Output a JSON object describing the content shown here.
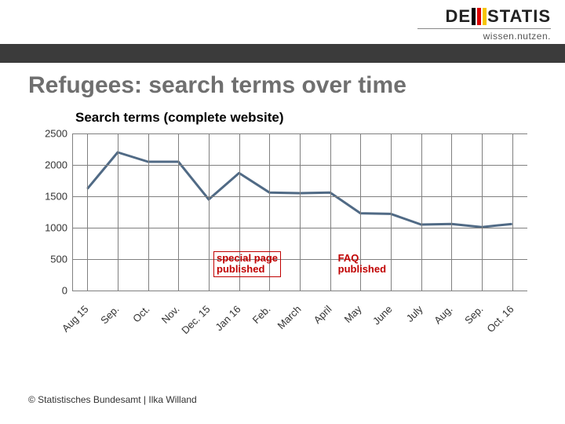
{
  "branding": {
    "logo_left": "DE",
    "logo_right": "STATIS",
    "tagline": "wissen.nutzen."
  },
  "title": "Refugees: search terms over time",
  "subtitle": "Search terms (complete website)",
  "footer": "© Statistisches Bundesamt | Ilka Willand",
  "chart": {
    "type": "line",
    "y": {
      "min": 0,
      "max": 2500,
      "step": 500,
      "ticks": [
        0,
        500,
        1000,
        1500,
        2000,
        2500
      ]
    },
    "x_labels": [
      "Aug 15",
      "Sep.",
      "Oct.",
      "Nov.",
      "Dec. 15",
      "Jan 16",
      "Feb.",
      "March",
      "April",
      "May",
      "June",
      "July",
      "Aug.",
      "Sep.",
      "Oct. 16"
    ],
    "values": [
      1620,
      2200,
      2050,
      2050,
      1450,
      1870,
      1560,
      1550,
      1560,
      1230,
      1220,
      1050,
      1060,
      1010,
      1060
    ],
    "line_color": "#506a85",
    "line_width": 3,
    "grid_color": "#808080",
    "background_color": "#ffffff",
    "annotations": [
      {
        "id": "special",
        "text1": "special page",
        "text2": "published",
        "at_index": 4,
        "boxed": true
      },
      {
        "id": "faq",
        "text1": "FAQ",
        "text2": "published",
        "at_index": 8,
        "boxed": false
      }
    ],
    "annotation_color": "#c00000",
    "label_fontsize": 13
  }
}
